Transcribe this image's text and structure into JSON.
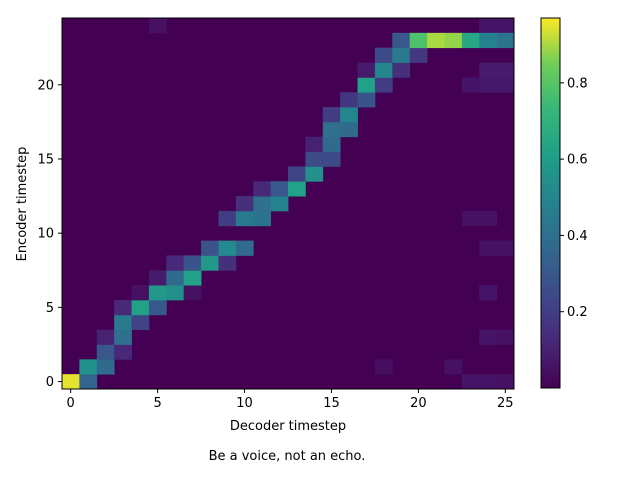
{
  "chart_data": {
    "type": "heatmap",
    "xlabel": "Decoder timestep",
    "ylabel": "Encoder timestep",
    "x_range": [
      -0.5,
      25.5
    ],
    "y_range": [
      -0.5,
      24.5
    ],
    "x_ticks": [
      0,
      5,
      10,
      15,
      20,
      25
    ],
    "y_ticks": [
      0,
      5,
      10,
      15,
      20
    ],
    "colormap": "viridis",
    "colorbar": {
      "min": 0.0,
      "max": 0.97,
      "ticks": [
        0.2,
        0.4,
        0.6,
        0.8
      ]
    },
    "background_value": 0.0,
    "note_cells": "cells list [decoder_step, encoder_step, weight]; unlisted cells are ~0",
    "cells": [
      [
        0,
        0,
        0.95
      ],
      [
        1,
        0,
        0.35
      ],
      [
        1,
        1,
        0.55
      ],
      [
        2,
        1,
        0.38
      ],
      [
        2,
        2,
        0.3
      ],
      [
        2,
        3,
        0.1
      ],
      [
        3,
        2,
        0.12
      ],
      [
        3,
        3,
        0.4
      ],
      [
        3,
        4,
        0.45
      ],
      [
        3,
        5,
        0.12
      ],
      [
        4,
        4,
        0.22
      ],
      [
        4,
        5,
        0.62
      ],
      [
        4,
        6,
        0.05
      ],
      [
        5,
        5,
        0.3
      ],
      [
        5,
        6,
        0.58
      ],
      [
        5,
        7,
        0.08
      ],
      [
        6,
        6,
        0.55
      ],
      [
        6,
        7,
        0.38
      ],
      [
        6,
        8,
        0.12
      ],
      [
        7,
        6,
        0.05
      ],
      [
        7,
        7,
        0.62
      ],
      [
        7,
        8,
        0.28
      ],
      [
        8,
        8,
        0.58
      ],
      [
        8,
        9,
        0.28
      ],
      [
        9,
        8,
        0.15
      ],
      [
        9,
        9,
        0.52
      ],
      [
        9,
        11,
        0.2
      ],
      [
        10,
        9,
        0.38
      ],
      [
        10,
        11,
        0.45
      ],
      [
        10,
        12,
        0.15
      ],
      [
        11,
        11,
        0.42
      ],
      [
        11,
        12,
        0.4
      ],
      [
        11,
        13,
        0.12
      ],
      [
        12,
        12,
        0.48
      ],
      [
        12,
        13,
        0.3
      ],
      [
        13,
        13,
        0.62
      ],
      [
        13,
        14,
        0.22
      ],
      [
        14,
        14,
        0.55
      ],
      [
        14,
        15,
        0.25
      ],
      [
        14,
        16,
        0.1
      ],
      [
        15,
        15,
        0.25
      ],
      [
        15,
        16,
        0.38
      ],
      [
        15,
        17,
        0.4
      ],
      [
        15,
        18,
        0.2
      ],
      [
        16,
        17,
        0.38
      ],
      [
        16,
        18,
        0.5
      ],
      [
        16,
        19,
        0.18
      ],
      [
        17,
        19,
        0.28
      ],
      [
        17,
        20,
        0.62
      ],
      [
        17,
        21,
        0.08
      ],
      [
        18,
        20,
        0.2
      ],
      [
        18,
        21,
        0.5
      ],
      [
        18,
        22,
        0.25
      ],
      [
        19,
        21,
        0.15
      ],
      [
        19,
        22,
        0.45
      ],
      [
        19,
        23,
        0.3
      ],
      [
        20,
        22,
        0.18
      ],
      [
        20,
        23,
        0.78
      ],
      [
        21,
        23,
        0.9
      ],
      [
        22,
        23,
        0.88
      ],
      [
        23,
        23,
        0.65
      ],
      [
        24,
        23,
        0.48
      ],
      [
        25,
        23,
        0.42
      ]
    ],
    "noise_cells": [
      [
        24,
        0,
        0.06
      ],
      [
        25,
        0,
        0.05
      ],
      [
        23,
        0,
        0.06
      ],
      [
        24,
        3,
        0.06
      ],
      [
        25,
        3,
        0.05
      ],
      [
        24,
        6,
        0.06
      ],
      [
        24,
        9,
        0.05
      ],
      [
        25,
        9,
        0.05
      ],
      [
        24,
        11,
        0.05
      ],
      [
        23,
        11,
        0.05
      ],
      [
        24,
        20,
        0.07
      ],
      [
        25,
        20,
        0.07
      ],
      [
        24,
        21,
        0.08
      ],
      [
        25,
        21,
        0.08
      ],
      [
        23,
        20,
        0.06
      ],
      [
        24,
        24,
        0.06
      ],
      [
        25,
        24,
        0.06
      ],
      [
        5,
        24,
        0.05
      ],
      [
        18,
        1,
        0.04
      ],
      [
        22,
        1,
        0.05
      ]
    ]
  },
  "caption": "Be a voice, not an echo."
}
